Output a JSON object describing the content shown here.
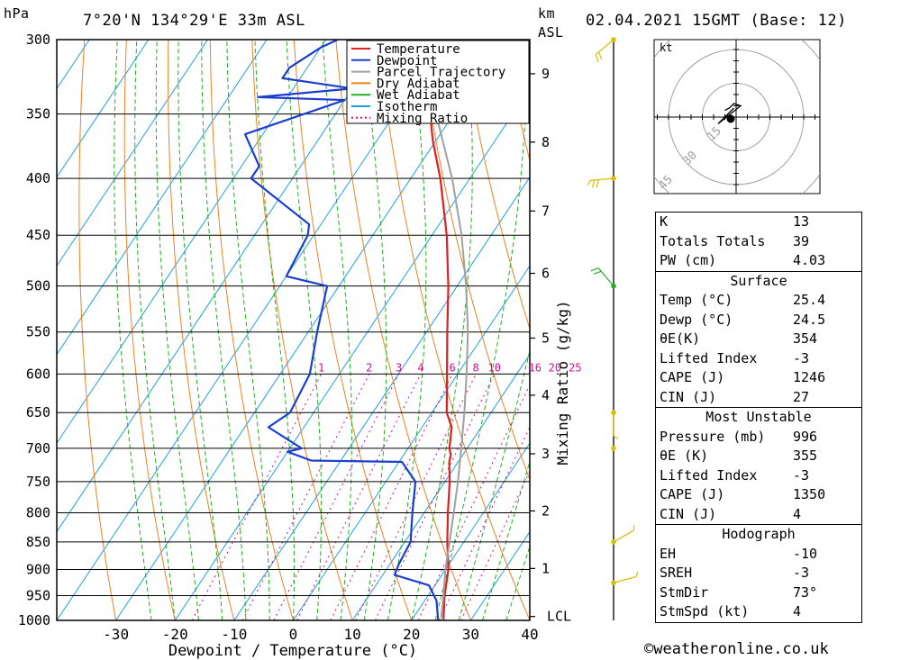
{
  "header": {
    "location": "7°20'N 134°29'E 33m ASL",
    "date": "02.04.2021 15GMT (Base: 12)",
    "unit_hpa": "hPa",
    "unit_km": "km",
    "unit_asl": "ASL"
  },
  "chart_data": {
    "type": "line",
    "title": "7°20'N 134°29'E 33m ASL",
    "xlabel": "Dewpoint / Temperature (°C)",
    "ylabel": "hPa",
    "y2label": "Mixing Ratio (g/kg)",
    "xlim": [
      -40,
      40
    ],
    "ylim": [
      1000,
      300
    ],
    "x_ticks": [
      "-30",
      "-20",
      "-10",
      "0",
      "10",
      "20",
      "30",
      "40"
    ],
    "y_ticks": [
      300,
      350,
      400,
      450,
      500,
      550,
      600,
      650,
      700,
      750,
      800,
      850,
      900,
      950,
      1000
    ],
    "km_ticks": [
      {
        "label": "9",
        "p": 322
      },
      {
        "label": "8",
        "p": 371
      },
      {
        "label": "7",
        "p": 428
      },
      {
        "label": "6",
        "p": 487
      },
      {
        "label": "5",
        "p": 557
      },
      {
        "label": "4",
        "p": 627
      },
      {
        "label": "3",
        "p": 708
      },
      {
        "label": "2",
        "p": 797
      },
      {
        "label": "1",
        "p": 898
      },
      {
        "label": "LCL",
        "p": 992
      }
    ],
    "mixing_ratio_labels": [
      "1",
      "2",
      "3",
      "4",
      "6",
      "8",
      "10",
      "16",
      "20",
      "25"
    ],
    "mixing_ratio_values": [
      1,
      2,
      3,
      4,
      6,
      8,
      10,
      16,
      20,
      25
    ],
    "legend": [
      "Temperature",
      "Dewpoint",
      "Parcel Trajectory",
      "Dry Adiabat",
      "Wet Adiabat",
      "Isotherm",
      "Mixing Ratio"
    ],
    "legend_position": "top-right",
    "series": [
      {
        "name": "Temperature",
        "color": "#e02020",
        "points": [
          [
            1000,
            25.4
          ],
          [
            950,
            22.8
          ],
          [
            900,
            20.5
          ],
          [
            850,
            17.2
          ],
          [
            800,
            14.0
          ],
          [
            750,
            10.8
          ],
          [
            720,
            8.5
          ],
          [
            710,
            8.0
          ],
          [
            700,
            7.0
          ],
          [
            670,
            5.0
          ],
          [
            650,
            2.5
          ],
          [
            600,
            -1.8
          ],
          [
            550,
            -6.5
          ],
          [
            500,
            -11.5
          ],
          [
            450,
            -17.5
          ],
          [
            400,
            -25.0
          ],
          [
            370,
            -30.5
          ],
          [
            350,
            -34.0
          ]
        ]
      },
      {
        "name": "Dewpoint",
        "color": "#1a3fd0",
        "points": [
          [
            1000,
            24.5
          ],
          [
            960,
            22.0
          ],
          [
            930,
            19.0
          ],
          [
            910,
            12.0
          ],
          [
            890,
            11.5
          ],
          [
            850,
            11.0
          ],
          [
            800,
            8.0
          ],
          [
            750,
            5.0
          ],
          [
            720,
            0.5
          ],
          [
            718,
            -15.0
          ],
          [
            705,
            -20.0
          ],
          [
            700,
            -18.0
          ],
          [
            670,
            -26.0
          ],
          [
            650,
            -24.0
          ],
          [
            600,
            -25.0
          ],
          [
            550,
            -28.5
          ],
          [
            500,
            -32.0
          ],
          [
            490,
            -40.0
          ],
          [
            450,
            -41.0
          ],
          [
            440,
            -42.0
          ],
          [
            400,
            -57.0
          ],
          [
            390,
            -57.0
          ],
          [
            365,
            -63.0
          ],
          [
            340,
            -50.0
          ],
          [
            338,
            -65.0
          ],
          [
            332,
            -50.0
          ],
          [
            325,
            -63.0
          ],
          [
            318,
            -63.0
          ],
          [
            305,
            -60.0
          ],
          [
            300,
            -58.0
          ]
        ]
      },
      {
        "name": "Parcel Trajectory",
        "color": "#a0a0a0",
        "points": [
          [
            1000,
            25.4
          ],
          [
            992,
            24.6
          ],
          [
            950,
            22.6
          ],
          [
            900,
            20.0
          ],
          [
            850,
            17.6
          ],
          [
            800,
            15.0
          ],
          [
            750,
            12.2
          ],
          [
            700,
            9.0
          ],
          [
            650,
            5.5
          ],
          [
            600,
            1.5
          ],
          [
            550,
            -3.0
          ],
          [
            500,
            -8.5
          ],
          [
            450,
            -15.0
          ],
          [
            400,
            -23.0
          ],
          [
            350,
            -33.0
          ]
        ]
      }
    ]
  },
  "wind_barbs": [
    {
      "p": 300,
      "dir": 230,
      "spd": 10
    },
    {
      "p": 400,
      "dir": 265,
      "spd": 15
    },
    {
      "p": 500,
      "dir": 320,
      "spd": 10
    },
    {
      "p": 650,
      "dir": 180,
      "spd": 5
    },
    {
      "p": 700,
      "dir": 90,
      "spd": 0
    },
    {
      "p": 850,
      "dir": 60,
      "spd": 5
    },
    {
      "p": 925,
      "dir": 75,
      "spd": 5
    }
  ],
  "hodograph": {
    "unit": "kt",
    "ring_labels": [
      "15",
      "30",
      "45"
    ],
    "ring_values": [
      15,
      30,
      45
    ],
    "trace_kt": [
      [
        -5,
        3
      ],
      [
        -3,
        4
      ],
      [
        -1,
        6
      ],
      [
        2,
        5
      ],
      [
        -8,
        -3
      ],
      [
        -4,
        1
      ],
      [
        -1,
        4
      ]
    ]
  },
  "indices": {
    "general": [
      {
        "label": "K",
        "value": "13"
      },
      {
        "label": "Totals Totals",
        "value": "39"
      },
      {
        "label": "PW (cm)",
        "value": "4.03"
      }
    ],
    "surface_title": "Surface",
    "surface": [
      {
        "label": "Temp (°C)",
        "value": "25.4"
      },
      {
        "label": "Dewp (°C)",
        "value": "24.5"
      },
      {
        "label": "θE(K)",
        "value": "354"
      },
      {
        "label": "Lifted Index",
        "value": "-3"
      },
      {
        "label": "CAPE (J)",
        "value": "1246"
      },
      {
        "label": "CIN (J)",
        "value": "27"
      }
    ],
    "mu_title": "Most Unstable",
    "most_unstable": [
      {
        "label": "Pressure (mb)",
        "value": "996"
      },
      {
        "label": "θE (K)",
        "value": "355"
      },
      {
        "label": "Lifted Index",
        "value": "-3"
      },
      {
        "label": "CAPE (J)",
        "value": "1350"
      },
      {
        "label": "CIN (J)",
        "value": "4"
      }
    ],
    "hodo_title": "Hodograph",
    "hodo": [
      {
        "label": "EH",
        "value": "-10"
      },
      {
        "label": "SREH",
        "value": "-3"
      },
      {
        "label": "StmDir",
        "value": "73°"
      },
      {
        "label": "StmSpd (kt)",
        "value": "4"
      }
    ]
  },
  "footer": "©weatheronline.co.uk",
  "colors": {
    "dry_adiabat": "#f08020",
    "wet_adiabat": "#22b022",
    "isotherm": "#20a0e0",
    "mixing_ratio": "#d0108a",
    "wind": "#d8c000",
    "wind_calm": "#22b022"
  }
}
